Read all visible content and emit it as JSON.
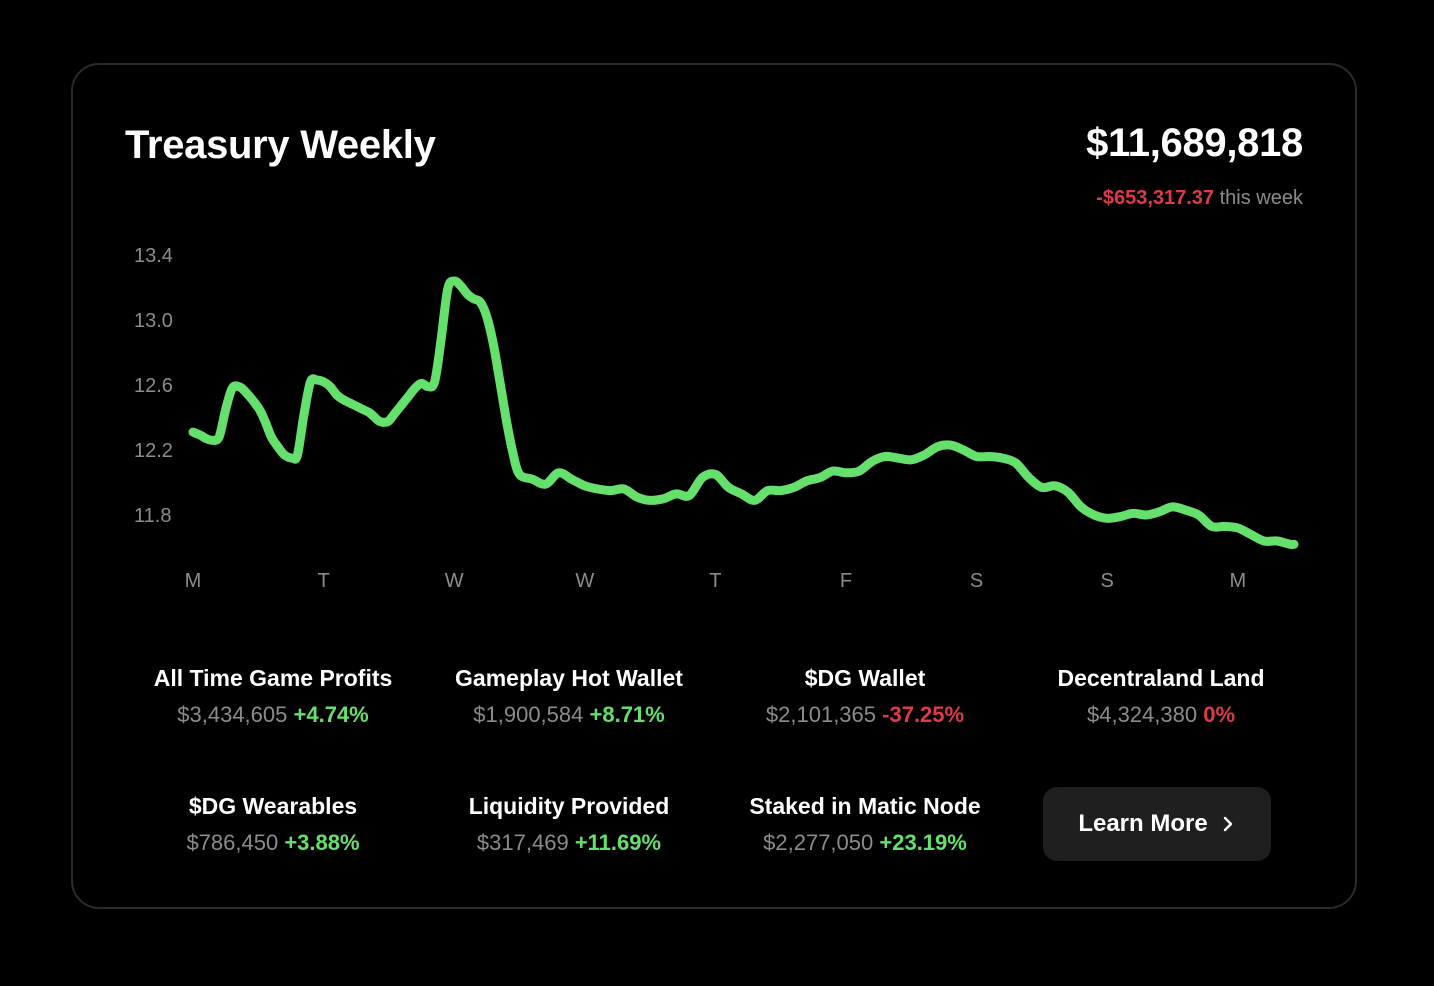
{
  "header": {
    "title": "Treasury Weekly",
    "total": "$11,689,818",
    "week_change": "-$653,317.37",
    "week_suffix": "this week"
  },
  "stats": [
    {
      "label": "All Time Game Profits",
      "value": "$3,434,605",
      "change": "+4.74%",
      "trend": "up"
    },
    {
      "label": "Gameplay Hot Wallet",
      "value": "$1,900,584",
      "change": "+8.71%",
      "trend": "up"
    },
    {
      "label": "$DG Wallet",
      "value": "$2,101,365",
      "change": "-37.25%",
      "trend": "down"
    },
    {
      "label": "Decentraland Land",
      "value": "$4,324,380",
      "change": "0%",
      "trend": "down"
    },
    {
      "label": "$DG Wearables",
      "value": "$786,450",
      "change": "+3.88%",
      "trend": "up"
    },
    {
      "label": "Liquidity Provided",
      "value": "$317,469",
      "change": "+11.69%",
      "trend": "up"
    },
    {
      "label": "Staked in Matic Node",
      "value": "$2,277,050",
      "change": "+23.19%",
      "trend": "up"
    }
  ],
  "learn_more": {
    "label": "Learn More",
    "icon": "chevron-right-icon"
  },
  "colors": {
    "positive": "#66e06c",
    "negative": "#e0394a",
    "line": "#66e06c",
    "button": "#1f1f1f"
  },
  "chart_data": {
    "type": "line",
    "categories": [
      "M",
      "T",
      "W",
      "W",
      "T",
      "F",
      "S",
      "S",
      "M"
    ],
    "yticks": [
      "13.4",
      "13.0",
      "12.6",
      "12.2",
      "11.8"
    ],
    "ylim": [
      11.8,
      13.4
    ],
    "series": [
      {
        "x": [
          0,
          0.06,
          0.1,
          0.15,
          0.2,
          0.25,
          0.3,
          0.35,
          0.4,
          0.5,
          0.55,
          0.6,
          0.65,
          0.7,
          0.76,
          0.8,
          0.85,
          0.9,
          0.95,
          1.0,
          1.05,
          1.1,
          1.15,
          1.2,
          1.25,
          1.3,
          1.35,
          1.38,
          1.42,
          1.46,
          1.5,
          1.55,
          1.6,
          1.65,
          1.7,
          1.75,
          1.8,
          1.85,
          1.9,
          1.95,
          2.0,
          2.05,
          2.1,
          2.15,
          2.2,
          2.25,
          2.3,
          2.35,
          2.4,
          2.45,
          2.5,
          2.6,
          2.7,
          2.8,
          2.9,
          3.0,
          3.1,
          3.2,
          3.3,
          3.4,
          3.5,
          3.6,
          3.7,
          3.8,
          3.9,
          4.0,
          4.1,
          4.2,
          4.3,
          4.4,
          4.5,
          4.6,
          4.7,
          4.8,
          4.9,
          5.0,
          5.1,
          5.2,
          5.3,
          5.4,
          5.5,
          5.6,
          5.7,
          5.8,
          5.9,
          6.0,
          6.1,
          6.2,
          6.3,
          6.4,
          6.5,
          6.6,
          6.7,
          6.8,
          6.9,
          7.0,
          7.1,
          7.2,
          7.3,
          7.4,
          7.5,
          7.6,
          7.7,
          7.8,
          7.9,
          8.0,
          8.1,
          8.2,
          8.3,
          8.4,
          8.43
        ],
        "values": [
          12.31,
          12.29,
          12.27,
          12.26,
          12.28,
          12.45,
          12.58,
          12.59,
          12.56,
          12.46,
          12.38,
          12.28,
          12.22,
          12.17,
          12.15,
          12.17,
          12.42,
          12.62,
          12.63,
          12.62,
          12.59,
          12.54,
          12.51,
          12.49,
          12.47,
          12.45,
          12.43,
          12.41,
          12.38,
          12.37,
          12.38,
          12.43,
          12.48,
          12.53,
          12.58,
          12.61,
          12.59,
          12.62,
          12.88,
          13.19,
          13.24,
          13.21,
          13.16,
          13.13,
          13.11,
          13.02,
          12.85,
          12.62,
          12.38,
          12.18,
          12.05,
          12.02,
          11.99,
          12.06,
          12.02,
          11.98,
          11.96,
          11.95,
          11.96,
          11.91,
          11.89,
          11.9,
          11.93,
          11.92,
          12.03,
          12.05,
          11.97,
          11.93,
          11.89,
          11.95,
          11.95,
          11.97,
          12.01,
          12.03,
          12.07,
          12.06,
          12.07,
          12.13,
          12.16,
          12.15,
          12.14,
          12.17,
          12.22,
          12.23,
          12.2,
          12.16,
          12.16,
          12.15,
          12.12,
          12.03,
          11.97,
          11.98,
          11.94,
          11.85,
          11.8,
          11.78,
          11.79,
          11.81,
          11.8,
          11.82,
          11.85,
          11.83,
          11.8,
          11.73,
          11.73,
          11.72,
          11.68,
          11.64,
          11.64,
          11.62,
          11.62
        ]
      }
    ]
  }
}
